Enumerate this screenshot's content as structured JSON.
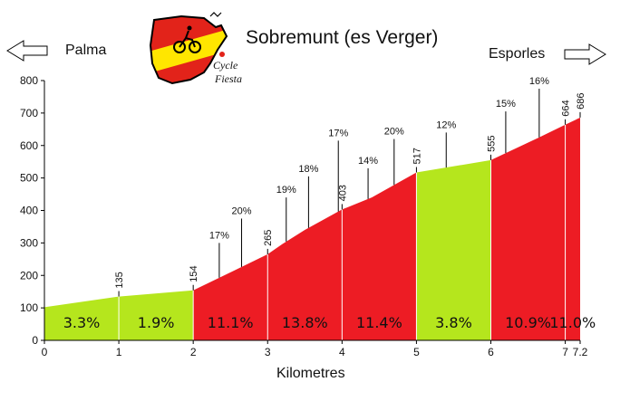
{
  "header": {
    "title": "Sobremunt (es Verger)",
    "start_town": "Palma",
    "end_town": "Esporles",
    "logo_text_1": "Cycle",
    "logo_text_2": "Fiesta"
  },
  "colors": {
    "steep": "#ed1c24",
    "moderate": "#b5e61d",
    "axis": "#000000"
  },
  "chart_data": {
    "type": "area",
    "xlabel": "Kilometres",
    "ylabel": "",
    "xlim": [
      0,
      7.2
    ],
    "ylim": [
      0,
      800
    ],
    "x_ticks": [
      0,
      1,
      2,
      3,
      4,
      5,
      6,
      7,
      7.2
    ],
    "x_tick_labels": [
      "0",
      "1",
      "2",
      "3",
      "4",
      "5",
      "6",
      "7",
      "7.2"
    ],
    "y_ticks": [
      0,
      100,
      200,
      300,
      400,
      500,
      600,
      700,
      800
    ],
    "segments": [
      {
        "from_km": 0,
        "to_km": 1,
        "gradient_label": "3.3%",
        "color": "moderate"
      },
      {
        "from_km": 1,
        "to_km": 2,
        "gradient_label": "1.9%",
        "color": "moderate"
      },
      {
        "from_km": 2,
        "to_km": 3,
        "gradient_label": "11.1%",
        "color": "steep"
      },
      {
        "from_km": 3,
        "to_km": 4,
        "gradient_label": "13.8%",
        "color": "steep"
      },
      {
        "from_km": 4,
        "to_km": 5,
        "gradient_label": "11.4%",
        "color": "steep"
      },
      {
        "from_km": 5,
        "to_km": 6,
        "gradient_label": "3.8%",
        "color": "moderate"
      },
      {
        "from_km": 6,
        "to_km": 7,
        "gradient_label": "10.9%",
        "color": "steep"
      },
      {
        "from_km": 7,
        "to_km": 7.2,
        "gradient_label": "11.0%",
        "color": "steep"
      }
    ],
    "profile": [
      {
        "km": 0,
        "elev": 102
      },
      {
        "km": 1,
        "elev": 135
      },
      {
        "km": 2,
        "elev": 154
      },
      {
        "km": 3,
        "elev": 265
      },
      {
        "km": 3.2,
        "elev": 297
      },
      {
        "km": 3.5,
        "elev": 340
      },
      {
        "km": 4,
        "elev": 403
      },
      {
        "km": 4.4,
        "elev": 440
      },
      {
        "km": 5,
        "elev": 517
      },
      {
        "km": 6,
        "elev": 555
      },
      {
        "km": 6.65,
        "elev": 625
      },
      {
        "km": 7,
        "elev": 664
      },
      {
        "km": 7.2,
        "elev": 686
      }
    ],
    "km_elevation_labels": [
      {
        "km": 1,
        "label": "135"
      },
      {
        "km": 2,
        "label": "154"
      },
      {
        "km": 3,
        "label": "265"
      },
      {
        "km": 4,
        "label": "403"
      },
      {
        "km": 5,
        "label": "517"
      },
      {
        "km": 6,
        "label": "555"
      },
      {
        "km": 7,
        "label": "664"
      },
      {
        "km": 7.2,
        "label": "686"
      }
    ],
    "gradient_annotations": [
      {
        "km": 2.35,
        "label": "17%",
        "label_elev": 300
      },
      {
        "km": 2.65,
        "label": "20%",
        "label_elev": 375
      },
      {
        "km": 3.25,
        "label": "19%",
        "label_elev": 440
      },
      {
        "km": 3.55,
        "label": "18%",
        "label_elev": 505
      },
      {
        "km": 3.95,
        "label": "17%",
        "label_elev": 615
      },
      {
        "km": 4.35,
        "label": "14%",
        "label_elev": 530
      },
      {
        "km": 4.7,
        "label": "20%",
        "label_elev": 620
      },
      {
        "km": 5.4,
        "label": "12%",
        "label_elev": 640
      },
      {
        "km": 6.2,
        "label": "15%",
        "label_elev": 705
      },
      {
        "km": 6.65,
        "label": "16%",
        "label_elev": 775
      }
    ]
  }
}
